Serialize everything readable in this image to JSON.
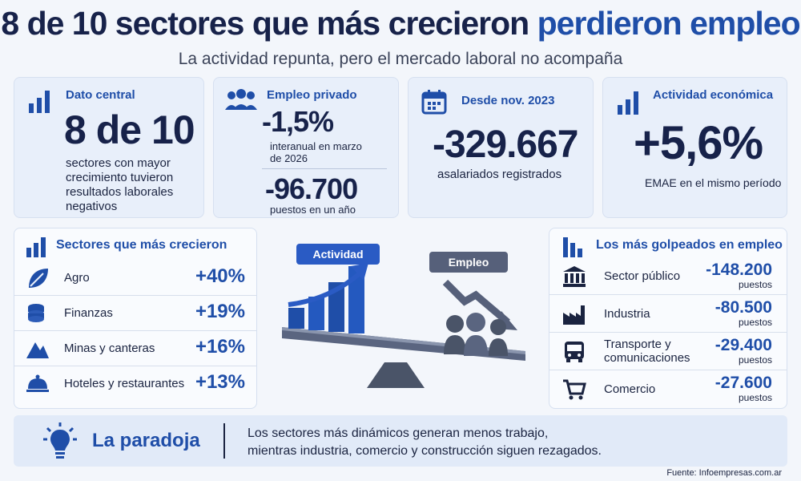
{
  "header": {
    "title_main": "8 de 10 sectores que más crecieron",
    "title_highlight": "perdieron empleo",
    "subtitle": "La actividad repunta, pero el mercado laboral no acompaña"
  },
  "kpis": {
    "dato_central": {
      "heading": "Dato central",
      "value": "8 de 10",
      "caption": "sectores con mayor crecimiento tuvieron resultados laborales negativos"
    },
    "empleo_privado": {
      "heading": "Empleo privado",
      "value1": "-1,5%",
      "caption1": "interanual en marzo de 2026",
      "value2": "-96.700",
      "caption2": "puestos en un año"
    },
    "desde_nov": {
      "heading": "Desde nov. 2023",
      "value": "-329.667",
      "caption": "asalariados registrados"
    },
    "actividad": {
      "heading": "Actividad económica",
      "value": "+5,6%",
      "caption": "EMAE en el mismo período"
    }
  },
  "growth": {
    "heading": "Sectores que más crecieron",
    "rows": [
      {
        "label": "Agro",
        "value": "+40%",
        "icon": "leaf-icon"
      },
      {
        "label": "Finanzas",
        "value": "+19%",
        "icon": "coins-icon"
      },
      {
        "label": "Minas y canteras",
        "value": "+16%",
        "icon": "mountain-icon"
      },
      {
        "label": "Hoteles y restaurantes",
        "value": "+13%",
        "icon": "cloche-icon"
      }
    ]
  },
  "illustration": {
    "label_left": "Actividad",
    "label_right": "Empleo"
  },
  "hit": {
    "heading": "Los más golpeados en empleo",
    "rows": [
      {
        "label": "Sector público",
        "value": "-148.200",
        "unit": "puestos",
        "icon": "building-icon"
      },
      {
        "label": "Industria",
        "value": "-80.500",
        "unit": "puestos",
        "icon": "factory-icon"
      },
      {
        "label": "Transporte y comunicaciones",
        "value": "-29.400",
        "unit": "puestos",
        "icon": "bus-icon"
      },
      {
        "label": "Comercio",
        "value": "-27.600",
        "unit": "puestos",
        "icon": "cart-icon"
      }
    ]
  },
  "footer": {
    "heading": "La paradoja",
    "line1": "Los sectores más dinámicos generan menos trabajo,",
    "line2": "mientras industria, comercio y construcción siguen rezagados.",
    "source": "Fuente: Infoempresas.com.ar"
  },
  "colors": {
    "accent": "#1f4ea8",
    "navy": "#17224a",
    "panel": "#e8effa"
  }
}
